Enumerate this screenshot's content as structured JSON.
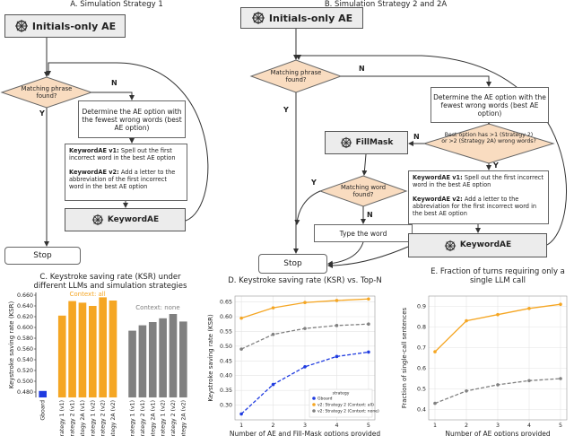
{
  "diagram_a": {
    "title": "A. Simulation Strategy 1",
    "start": "Initials-only AE",
    "decision": "Matching phrase found?",
    "no": "N",
    "yes": "Y",
    "determine": "Determine the AE option with the fewest wrong words (best AE option)",
    "v1_label": "KeywordAE v1:",
    "v1_text": "Spell out the first incorrect word in the best AE option",
    "v2_label": "KeywordAE v2:",
    "v2_text": "Add a letter to the abbreviation of the first incorrect word in the best AE option",
    "keyword": "KeywordAE",
    "stop": "Stop"
  },
  "diagram_b": {
    "title": "B. Simulation Strategy 2 and 2A",
    "start": "Initials-only AE",
    "decision": "Matching phrase found?",
    "no": "N",
    "yes": "Y",
    "determine": "Determine the AE option with the fewest wrong words (best AE option)",
    "decision2": "Best option has >1 (Strategy 2) or >2 (Strategy 2A) wrong words?",
    "no2": "N",
    "yes2": "Y",
    "fillmask": "FillMask",
    "decision3": "Matching word found?",
    "yes3": "Y",
    "no3": "N",
    "type": "Type the word",
    "v1_label": "KeywordAE v1:",
    "v1_text": "Spell out the first incorrect word in the best AE option",
    "v2_label": "KeywordAE v2:",
    "v2_text": "Add a letter to the abbreviation for the first incorrect word in the best AE option",
    "keyword": "KeywordAE",
    "stop": "Stop"
  },
  "chart_data": [
    {
      "type": "bar",
      "title": "C. Keystroke saving rate (KSR) under different LLMs and simulation strategies",
      "y_label": "Keystroke saving rate (KSR)",
      "categories": [
        "Gboard",
        "Strategy 1 (v1)",
        "Strategy 2 (v1)",
        "Strategy 2A (v1)",
        "Strategy 1 (v2)",
        "Strategy 2 (v2)",
        "Strategy 2A (v2)",
        "Strategy 1 (v1)",
        "Strategy 2 (v1)",
        "Strategy 2A (v1)",
        "Strategy 1 (v2)",
        "Strategy 2 (v2)",
        "Strategy 2A (v2)"
      ],
      "values": [
        0.482,
        0.622,
        0.649,
        0.646,
        0.64,
        0.656,
        0.65,
        0.594,
        0.604,
        0.61,
        0.617,
        0.625,
        0.611
      ],
      "colors": [
        "#1f3be0",
        "#f5a623",
        "#f5a623",
        "#f5a623",
        "#f5a623",
        "#f5a623",
        "#f5a623",
        "#808080",
        "#808080",
        "#808080",
        "#808080",
        "#808080",
        "#808080"
      ],
      "annotations": [
        {
          "text": "Context: all",
          "color": "#f5a623"
        },
        {
          "text": "Context: none",
          "color": "#808080"
        }
      ],
      "ylim": [
        0.47,
        0.665
      ],
      "yticks": [
        {
          "value": 0.48,
          "label": "0.480"
        },
        {
          "value": 0.5,
          "label": "0.500"
        },
        {
          "value": 0.52,
          "label": "0.520"
        },
        {
          "value": 0.54,
          "label": "0.540"
        },
        {
          "value": 0.56,
          "label": "0.560"
        },
        {
          "value": 0.58,
          "label": "0.580"
        },
        {
          "value": 0.6,
          "label": "0.600"
        },
        {
          "value": 0.62,
          "label": "0.620"
        },
        {
          "value": 0.64,
          "label": "0.640"
        },
        {
          "value": 0.66,
          "label": "0.660"
        }
      ]
    },
    {
      "type": "line",
      "title": "D. Keystroke saving rate (KSR) vs. Top-N",
      "x_label": "Number of AE and Fill-Mask options provided",
      "y_label": "Keystroke saving rate (KSR)",
      "x": [
        1,
        2,
        3,
        4,
        5
      ],
      "xlim": [
        0.8,
        5.2
      ],
      "xticks": [
        1,
        2,
        3,
        4,
        5
      ],
      "ylim": [
        0.25,
        0.67
      ],
      "yticks": [
        {
          "value": 0.3,
          "label": "0.30"
        },
        0.35,
        {
          "value": 0.4,
          "label": "0.40"
        },
        0.45,
        {
          "value": 0.5,
          "label": "0.50"
        },
        0.55,
        {
          "value": 0.6,
          "label": "0.60"
        },
        0.65
      ],
      "legend_title": "strategy",
      "legend": "lower right",
      "grid": true,
      "series": [
        {
          "name": "Gboard",
          "color": "#1f3be0",
          "dash": true,
          "values": [
            0.27,
            0.37,
            0.43,
            0.465,
            0.48
          ]
        },
        {
          "name": "v2: Strategy 2 (Context: all)",
          "color": "#f5a623",
          "dash": false,
          "values": [
            0.595,
            0.63,
            0.648,
            0.655,
            0.66
          ]
        },
        {
          "name": "v2: Strategy 2 (Context: none)",
          "color": "#808080",
          "dash": true,
          "values": [
            0.49,
            0.54,
            0.56,
            0.57,
            0.575
          ]
        }
      ]
    },
    {
      "type": "line",
      "title": "E. Fraction of turns requiring only a single LLM call",
      "x_label": "Number of AE options provided",
      "y_label": "Fraction of single-call sentences",
      "x": [
        1,
        2,
        3,
        4,
        5
      ],
      "xlim": [
        0.8,
        5.2
      ],
      "xticks": [
        1,
        2,
        3,
        4,
        5
      ],
      "ylim": [
        0.35,
        0.95
      ],
      "yticks": [
        0.4,
        0.5,
        0.6,
        0.7,
        0.8,
        0.9
      ],
      "grid": true,
      "series": [
        {
          "color": "#f5a623",
          "dash": false,
          "values": [
            0.68,
            0.83,
            0.86,
            0.89,
            0.91
          ]
        },
        {
          "color": "#808080",
          "dash": true,
          "values": [
            0.43,
            0.49,
            0.52,
            0.54,
            0.55
          ]
        }
      ]
    }
  ]
}
